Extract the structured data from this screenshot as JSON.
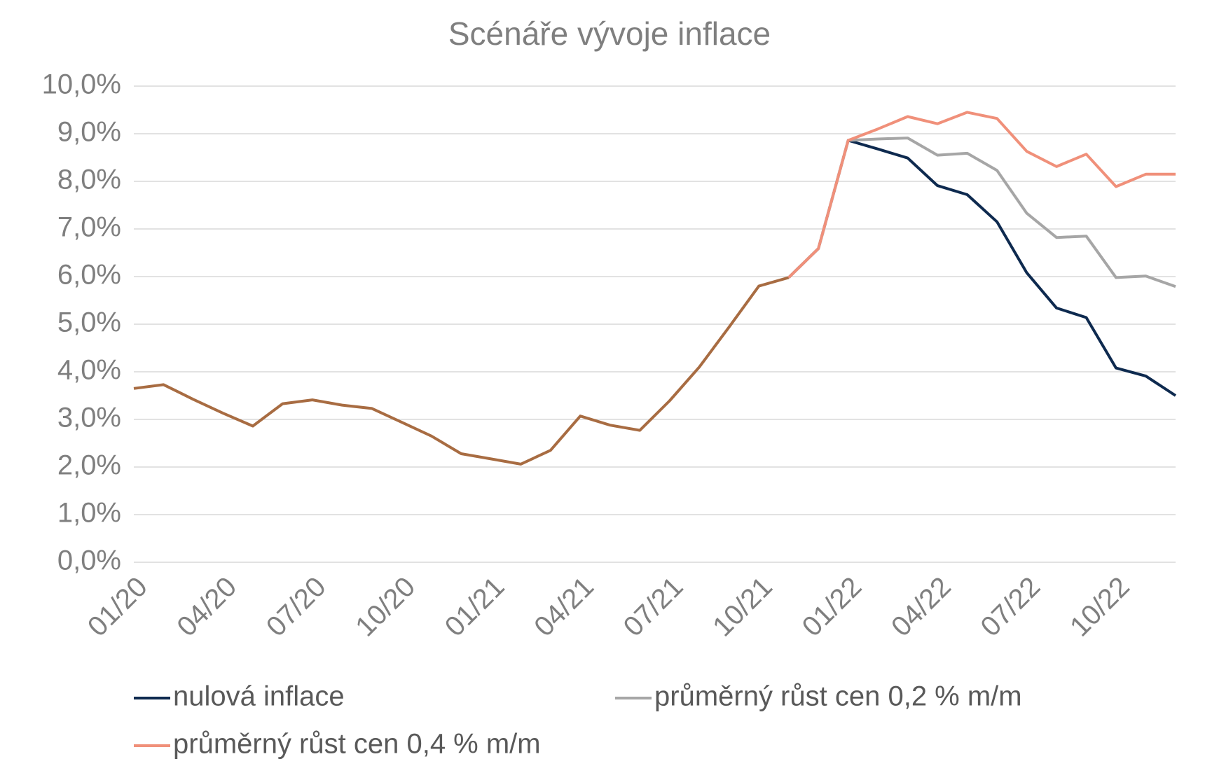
{
  "chart_data": {
    "type": "line",
    "title": "Scénáře vývoje inflace",
    "categories": [
      "01/20",
      null,
      null,
      "04/20",
      null,
      null,
      "07/20",
      null,
      null,
      "10/20",
      null,
      null,
      "01/21",
      null,
      null,
      "04/21",
      null,
      null,
      "07/21",
      null,
      null,
      "10/21",
      null,
      null,
      "01/22",
      null,
      null,
      "04/22",
      null,
      null,
      "07/22",
      null,
      null,
      "10/22",
      null,
      null
    ],
    "series": [
      {
        "color": "#a86c42",
        "values": [
          3.65,
          3.73,
          3.42,
          3.13,
          2.86,
          3.33,
          3.41,
          3.3,
          3.23,
          2.94,
          2.65,
          2.28,
          2.17,
          2.06,
          2.35,
          3.07,
          2.88,
          2.77,
          3.39,
          4.1,
          4.94,
          5.8,
          5.98,
          null,
          null,
          null,
          null,
          null,
          null,
          null,
          null,
          null,
          null,
          null,
          null,
          null
        ]
      },
      {
        "name": "nulová inflace",
        "color": "#0e2a4f",
        "values": [
          null,
          null,
          null,
          null,
          null,
          null,
          null,
          null,
          null,
          null,
          null,
          null,
          null,
          null,
          null,
          null,
          null,
          null,
          null,
          null,
          null,
          null,
          5.98,
          6.59,
          8.86,
          8.68,
          8.49,
          7.91,
          7.72,
          7.15,
          6.08,
          5.34,
          5.14,
          4.08,
          3.91,
          3.5
        ]
      },
      {
        "name": "průměrný růst cen 0,2 % m/m",
        "color": "#a6a6a6",
        "values": [
          null,
          null,
          null,
          null,
          null,
          null,
          null,
          null,
          null,
          null,
          null,
          null,
          null,
          null,
          null,
          null,
          null,
          null,
          null,
          null,
          null,
          null,
          5.98,
          6.59,
          8.86,
          8.89,
          8.91,
          8.55,
          8.59,
          8.23,
          7.33,
          6.82,
          6.85,
          5.98,
          6.01,
          5.79
        ]
      },
      {
        "name": "průměrný růst cen 0,4 % m/m",
        "color": "#f0907a",
        "values": [
          null,
          null,
          null,
          null,
          null,
          null,
          null,
          null,
          null,
          null,
          null,
          null,
          null,
          null,
          null,
          null,
          null,
          null,
          null,
          null,
          null,
          null,
          5.98,
          6.59,
          8.86,
          9.1,
          9.36,
          9.21,
          9.45,
          9.32,
          8.63,
          8.31,
          8.57,
          7.89,
          8.15,
          8.15
        ]
      }
    ],
    "ylim": [
      0,
      10
    ],
    "yticks": [
      {
        "value": 0,
        "label": "0,0%"
      },
      {
        "value": 1,
        "label": "1,0%"
      },
      {
        "value": 2,
        "label": "2,0%"
      },
      {
        "value": 3,
        "label": "3,0%"
      },
      {
        "value": 4,
        "label": "4,0%"
      },
      {
        "value": 5,
        "label": "5,0%"
      },
      {
        "value": 6,
        "label": "6,0%"
      },
      {
        "value": 7,
        "label": "7,0%"
      },
      {
        "value": 8,
        "label": "8,0%"
      },
      {
        "value": 9,
        "label": "9,0%"
      },
      {
        "value": 10,
        "label": "10,0%"
      }
    ],
    "grid": true,
    "legend": "bottom"
  }
}
